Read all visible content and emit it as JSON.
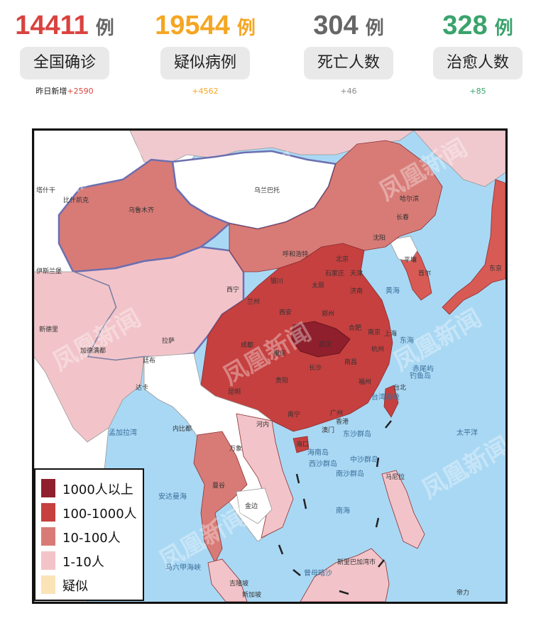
{
  "stats": [
    {
      "number": "14411",
      "unit": "例",
      "label": "全国确诊",
      "sub_prefix": "昨日新增",
      "sub_value": "+2590",
      "color": "#d9433f",
      "sub_color": "#d9433f"
    },
    {
      "number": "19544",
      "unit": "例",
      "label": "疑似病例",
      "sub_prefix": "",
      "sub_value": "+4562",
      "color": "#f5a623",
      "sub_color": "#f5a623"
    },
    {
      "number": "304",
      "unit": "例",
      "label": "死亡人数",
      "sub_prefix": "",
      "sub_value": "+46",
      "color": "#666666",
      "sub_color": "#8a8a8a"
    },
    {
      "number": "328",
      "unit": "例",
      "label": "治愈人数",
      "sub_prefix": "",
      "sub_value": "+85",
      "color": "#3aa36c",
      "sub_color": "#3aa36c"
    }
  ],
  "legend": [
    {
      "label": "1000人以上",
      "color": "#8f1f2c"
    },
    {
      "label": "100-1000人",
      "color": "#c5403f"
    },
    {
      "label": "10-100人",
      "color": "#d87b77"
    },
    {
      "label": "1-10人",
      "color": "#f2c4c9"
    },
    {
      "label": "疑似",
      "color": "#fbe3b8"
    }
  ],
  "map": {
    "colors": {
      "sea": "#a9d8f4",
      "foreign": "#ffffff",
      "foreign_pink": "#f0c9cf",
      "border": "#6c6fb0"
    },
    "cities": [
      "乌兰巴托",
      "哈尔滨",
      "长春",
      "沈阳",
      "平壤",
      "首尔",
      "东京",
      "乌鲁木齐",
      "呼和浩特",
      "北京",
      "天津",
      "石家庄",
      "太原",
      "济南",
      "银川",
      "西宁",
      "兰州",
      "西安",
      "郑州",
      "合肥",
      "南京",
      "上海",
      "武汉",
      "成都",
      "重庆",
      "杭州",
      "南昌",
      "长沙",
      "贵阳",
      "福州",
      "台北",
      "昆明",
      "南宁",
      "广州",
      "香港",
      "澳门",
      "海口",
      "拉萨",
      "比什凯克",
      "塔什干",
      "伊斯兰堡",
      "新德里",
      "加德满都",
      "廷布",
      "达卡",
      "内比都",
      "河内",
      "万象",
      "曼谷",
      "金边",
      "吉隆坡",
      "新加坡",
      "马尼拉",
      "斯里巴加湾市",
      "帝力"
    ],
    "sea_labels": [
      "黄海",
      "东海",
      "南海",
      "太平洋",
      "台湾海峡",
      "东沙群岛",
      "西沙群岛",
      "南沙群岛",
      "中沙群岛",
      "海南岛",
      "钓鱼岛",
      "赤尾屿",
      "曾母暗沙",
      "孟加拉湾",
      "安达曼海",
      "马六甲海峡"
    ],
    "watermark": "凤凰新闻"
  }
}
